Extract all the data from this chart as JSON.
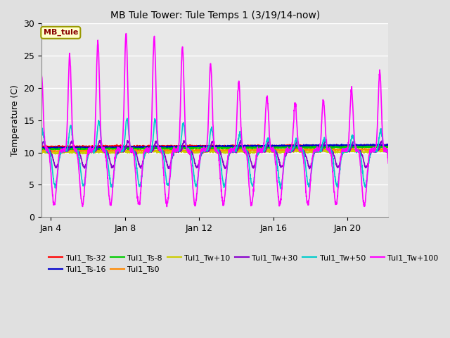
{
  "title": "MB Tule Tower: Tule Temps 1 (3/19/14-now)",
  "ylabel": "Temperature (C)",
  "xlim_days": [
    3.5,
    22.2
  ],
  "ylim": [
    0,
    30
  ],
  "yticks": [
    0,
    5,
    10,
    15,
    20,
    25,
    30
  ],
  "xtick_labels": [
    "Jan 4",
    "Jan 8",
    "Jan 12",
    "Jan 16",
    "Jan 20"
  ],
  "xtick_days": [
    4,
    8,
    12,
    16,
    20
  ],
  "background_color": "#e0e0e0",
  "plot_bg_color": "#e8e8e8",
  "grid_color": "#ffffff",
  "legend_label": "MB_tule",
  "legend_bg": "#ffffcc",
  "legend_edge": "#999900",
  "series": [
    {
      "label": "Tul1_Ts-32",
      "color": "#ff0000",
      "lw": 1.2
    },
    {
      "label": "Tul1_Ts-16",
      "color": "#0000cc",
      "lw": 1.2
    },
    {
      "label": "Tul1_Ts-8",
      "color": "#00cc00",
      "lw": 1.2
    },
    {
      "label": "Tul1_Ts0",
      "color": "#ff8800",
      "lw": 1.2
    },
    {
      "label": "Tul1_Tw+10",
      "color": "#cccc00",
      "lw": 1.2
    },
    {
      "label": "Tul1_Tw+30",
      "color": "#8800cc",
      "lw": 1.2
    },
    {
      "label": "Tul1_Tw+50",
      "color": "#00cccc",
      "lw": 1.2
    },
    {
      "label": "Tul1_Tw+100",
      "color": "#ff00ff",
      "lw": 1.2
    }
  ]
}
